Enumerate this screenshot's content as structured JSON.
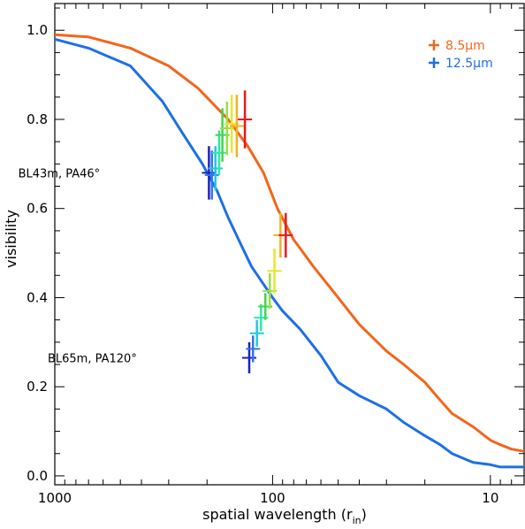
{
  "chart_data": {
    "type": "line",
    "title": "",
    "xlabel": "spatial wavelength (r",
    "xlabel_sub": "in",
    "xlabel_close": ")",
    "ylabel": "visibility",
    "x_scale": "log",
    "x_reversed": true,
    "xlim": [
      1000,
      7
    ],
    "ylim": [
      -0.02,
      1.06
    ],
    "x_ticks": [
      {
        "value": 1000,
        "label": "1000"
      },
      {
        "value": 100,
        "label": "100"
      },
      {
        "value": 10,
        "label": "10"
      }
    ],
    "y_ticks": [
      {
        "value": 0.0,
        "label": "0.0"
      },
      {
        "value": 0.2,
        "label": "0.2"
      },
      {
        "value": 0.4,
        "label": "0.4"
      },
      {
        "value": 0.6,
        "label": "0.6"
      },
      {
        "value": 0.8,
        "label": "0.8"
      },
      {
        "value": 1.0,
        "label": "1.0"
      }
    ],
    "grid": false,
    "legend_position": "top-right",
    "series": [
      {
        "name": "8.5μm",
        "color": "#f2661c",
        "x": [
          1000,
          700,
          450,
          300,
          220,
          160,
          130,
          110,
          95,
          80,
          65,
          50,
          40,
          30,
          25,
          20,
          17,
          15,
          12,
          10,
          9,
          8,
          7
        ],
        "y": [
          0.99,
          0.985,
          0.96,
          0.92,
          0.87,
          0.8,
          0.74,
          0.68,
          0.6,
          0.53,
          0.47,
          0.4,
          0.34,
          0.28,
          0.25,
          0.21,
          0.17,
          0.14,
          0.11,
          0.08,
          0.07,
          0.06,
          0.055
        ]
      },
      {
        "name": "12.5μm",
        "color": "#1e6fe6",
        "x": [
          1000,
          700,
          450,
          320,
          260,
          210,
          180,
          160,
          140,
          125,
          110,
          100,
          90,
          75,
          60,
          50,
          40,
          30,
          25,
          20,
          17,
          15,
          12,
          10,
          9,
          8,
          7
        ],
        "y": [
          0.98,
          0.96,
          0.92,
          0.84,
          0.77,
          0.7,
          0.64,
          0.58,
          0.52,
          0.47,
          0.43,
          0.4,
          0.37,
          0.33,
          0.27,
          0.21,
          0.18,
          0.15,
          0.12,
          0.09,
          0.07,
          0.05,
          0.03,
          0.025,
          0.02,
          0.02,
          0.02
        ]
      }
    ],
    "error_bars": [
      {
        "x": 196,
        "y": 0.68,
        "err": 0.06,
        "color": "#1f1fbf"
      },
      {
        "x": 190,
        "y": 0.675,
        "err": 0.055,
        "color": "#2f77e6"
      },
      {
        "x": 183,
        "y": 0.69,
        "err": 0.05,
        "color": "#22c7e8"
      },
      {
        "x": 176,
        "y": 0.725,
        "err": 0.05,
        "color": "#2ee8a8"
      },
      {
        "x": 170,
        "y": 0.765,
        "err": 0.06,
        "color": "#47d447"
      },
      {
        "x": 162,
        "y": 0.78,
        "err": 0.06,
        "color": "#96e04a"
      },
      {
        "x": 154,
        "y": 0.79,
        "err": 0.065,
        "color": "#e6e62e"
      },
      {
        "x": 146,
        "y": 0.785,
        "err": 0.07,
        "color": "#f2b026"
      },
      {
        "x": 134,
        "y": 0.8,
        "err": 0.065,
        "color": "#e61a1a"
      },
      {
        "x": 128,
        "y": 0.265,
        "err": 0.035,
        "color": "#1f1fbf"
      },
      {
        "x": 123,
        "y": 0.285,
        "err": 0.03,
        "color": "#2f77e6"
      },
      {
        "x": 118,
        "y": 0.32,
        "err": 0.03,
        "color": "#22c7e8"
      },
      {
        "x": 113,
        "y": 0.355,
        "err": 0.03,
        "color": "#2ee8a8"
      },
      {
        "x": 108,
        "y": 0.38,
        "err": 0.03,
        "color": "#47d447"
      },
      {
        "x": 103,
        "y": 0.415,
        "err": 0.04,
        "color": "#96e04a"
      },
      {
        "x": 98,
        "y": 0.46,
        "err": 0.05,
        "color": "#e6e62e"
      },
      {
        "x": 92,
        "y": 0.54,
        "err": 0.05,
        "color": "#f2b026"
      },
      {
        "x": 87,
        "y": 0.54,
        "err": 0.05,
        "color": "#e61a1a"
      }
    ],
    "annotations": [
      {
        "text": "BL43m, PA46°",
        "x": 620,
        "y": 0.68
      },
      {
        "text": "BL65m, PA120°",
        "x": 420,
        "y": 0.265
      }
    ]
  }
}
